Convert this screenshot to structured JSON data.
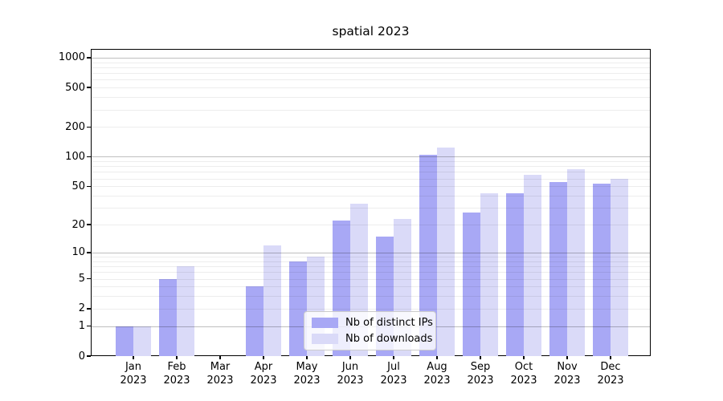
{
  "title": "spatial 2023",
  "chart_data": {
    "type": "bar",
    "title": "spatial 2023",
    "categories": [
      "Jan 2023",
      "Feb 2023",
      "Mar 2023",
      "Apr 2023",
      "May 2023",
      "Jun 2023",
      "Jul 2023",
      "Aug 2023",
      "Sep 2023",
      "Oct 2023",
      "Nov 2023",
      "Dec 2023"
    ],
    "series": [
      {
        "name": "Nb of distinct IPs",
        "color": "#a8a8f5",
        "values": [
          1,
          5,
          0,
          4,
          8,
          22,
          15,
          105,
          27,
          42,
          55,
          53
        ]
      },
      {
        "name": "Nb of downloads",
        "color": "#dadaf8",
        "values": [
          1,
          7,
          0,
          12,
          9,
          33,
          23,
          125,
          42,
          65,
          75,
          60
        ]
      }
    ],
    "yscale": "log1p",
    "y_ticks": [
      0,
      1,
      2,
      5,
      10,
      20,
      50,
      100,
      200,
      500,
      1000
    ],
    "ylim": [
      0,
      1160
    ],
    "grid": true,
    "legend_position": "lower center",
    "accent_colors": {
      "major_grid": "#c0c0c0",
      "minor_grid": "#ececec",
      "axis": "#000000"
    }
  }
}
